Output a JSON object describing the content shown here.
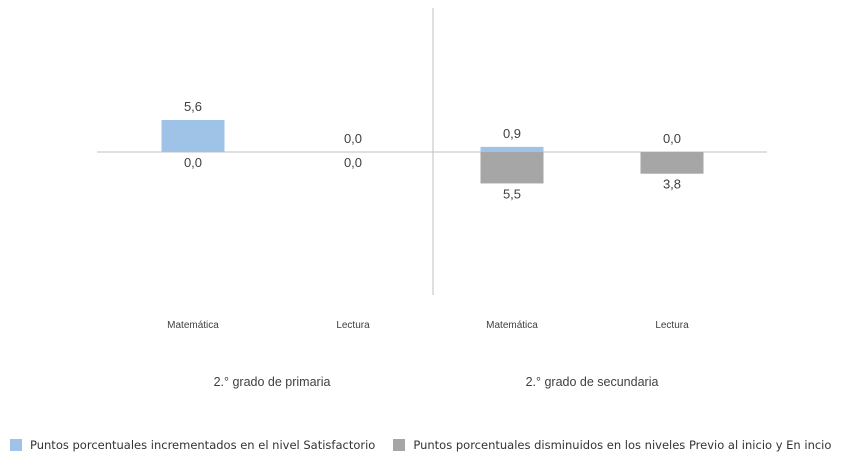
{
  "chart_data": {
    "type": "bar",
    "groups": [
      {
        "label": "2.° grado de primaria",
        "categories": [
          "Matemática",
          "Lectura"
        ]
      },
      {
        "label": "2.° grado de secundaria",
        "categories": [
          "Matemática",
          "Lectura"
        ]
      }
    ],
    "categories": [
      "Matemática",
      "Lectura",
      "Matemática",
      "Lectura"
    ],
    "series": [
      {
        "name": "Puntos porcentuales incrementados en el nivel Satisfactorio",
        "values": [
          5.6,
          0.0,
          0.9,
          0.0
        ],
        "labels": [
          "5,6",
          "0,0",
          "0,9",
          "0,0"
        ],
        "color": "#9fc3e7",
        "direction": "up"
      },
      {
        "name": "Puntos porcentuales disminuidos en los niveles Previo al inicio y En incio",
        "values": [
          0.0,
          0.0,
          5.5,
          3.8
        ],
        "labels": [
          "0,0",
          "0,0",
          "5,5",
          "3,8"
        ],
        "color": "#a6a6a6",
        "direction": "down"
      }
    ],
    "legend_position": "bottom",
    "grid": false
  }
}
